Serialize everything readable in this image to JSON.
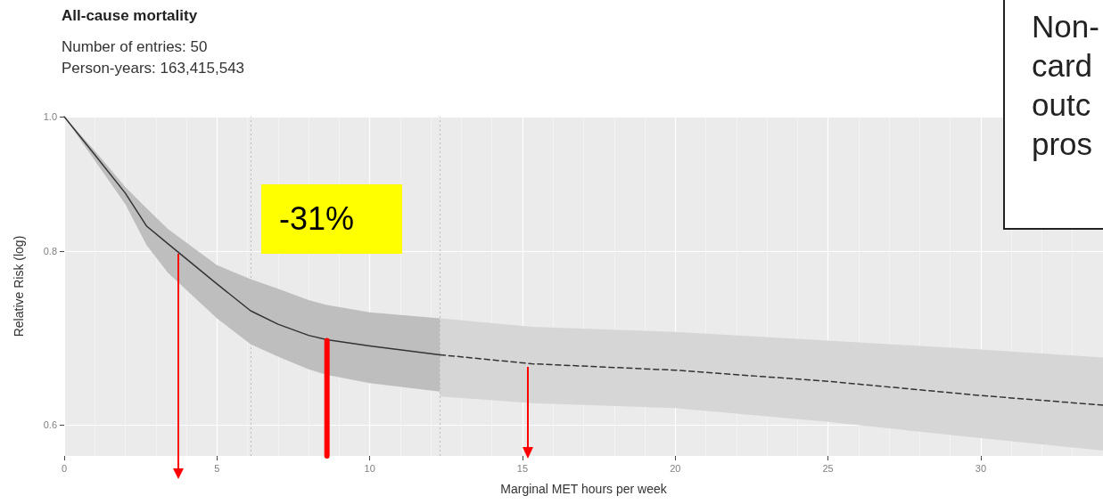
{
  "chart_data": {
    "type": "line",
    "title": "All-cause mortality",
    "subtitle": "Number of entries: 50\nPerson-years: 163,415,543",
    "xlabel": "Marginal MET hours per week",
    "ylabel": "Relative Risk (log)",
    "series": [
      {
        "color": "#333333",
        "line_style": "solid",
        "x": [
          0,
          1,
          2,
          2.7,
          3.4,
          5,
          6.1,
          7,
          8,
          8.6,
          10,
          12.3
        ],
        "values": [
          1.0,
          0.939,
          0.881,
          0.834,
          0.81,
          0.758,
          0.725,
          0.709,
          0.696,
          0.691,
          0.684,
          0.674
        ],
        "lower": [
          1.0,
          0.93,
          0.865,
          0.808,
          0.772,
          0.716,
          0.686,
          0.672,
          0.658,
          0.652,
          0.643,
          0.634
        ],
        "upper": [
          1.0,
          0.945,
          0.89,
          0.859,
          0.83,
          0.782,
          0.764,
          0.752,
          0.738,
          0.732,
          0.723,
          0.716
        ]
      },
      {
        "color": "#333333",
        "line_style": "dashed",
        "x": [
          12.3,
          15.3,
          20,
          25,
          30,
          34
        ],
        "values": [
          0.674,
          0.664,
          0.657,
          0.645,
          0.63,
          0.62
        ],
        "lower": [
          0.629,
          0.622,
          0.617,
          0.603,
          0.587,
          0.575
        ],
        "upper": [
          0.716,
          0.706,
          0.7,
          0.69,
          0.68,
          0.671
        ]
      },
      {
        "color": "#ff0000",
        "line_style": "solid",
        "x": [
          8.6,
          8.6
        ],
        "values": [
          0.69,
          0.57
        ]
      }
    ],
    "xlim": [
      0,
      34
    ],
    "xticks": [
      0,
      5,
      10,
      15,
      20,
      25,
      30
    ],
    "ylim": [
      0.57,
      1.0
    ],
    "yticks": [
      0.6,
      0.8,
      {
        "value": 1.0,
        "label": "1.0"
      }
    ],
    "log": "y",
    "grid": true,
    "marker": "none",
    "ref_lines": [
      {
        "axis": "x",
        "value": 6.1,
        "color": "#bdbdbd",
        "line_style": "dotted"
      },
      {
        "axis": "x",
        "value": 12.3,
        "color": "#bdbdbd",
        "line_style": "dotted"
      }
    ],
    "annotations": [
      "-31%",
      "Non-\ncard\noutc\npros"
    ]
  }
}
